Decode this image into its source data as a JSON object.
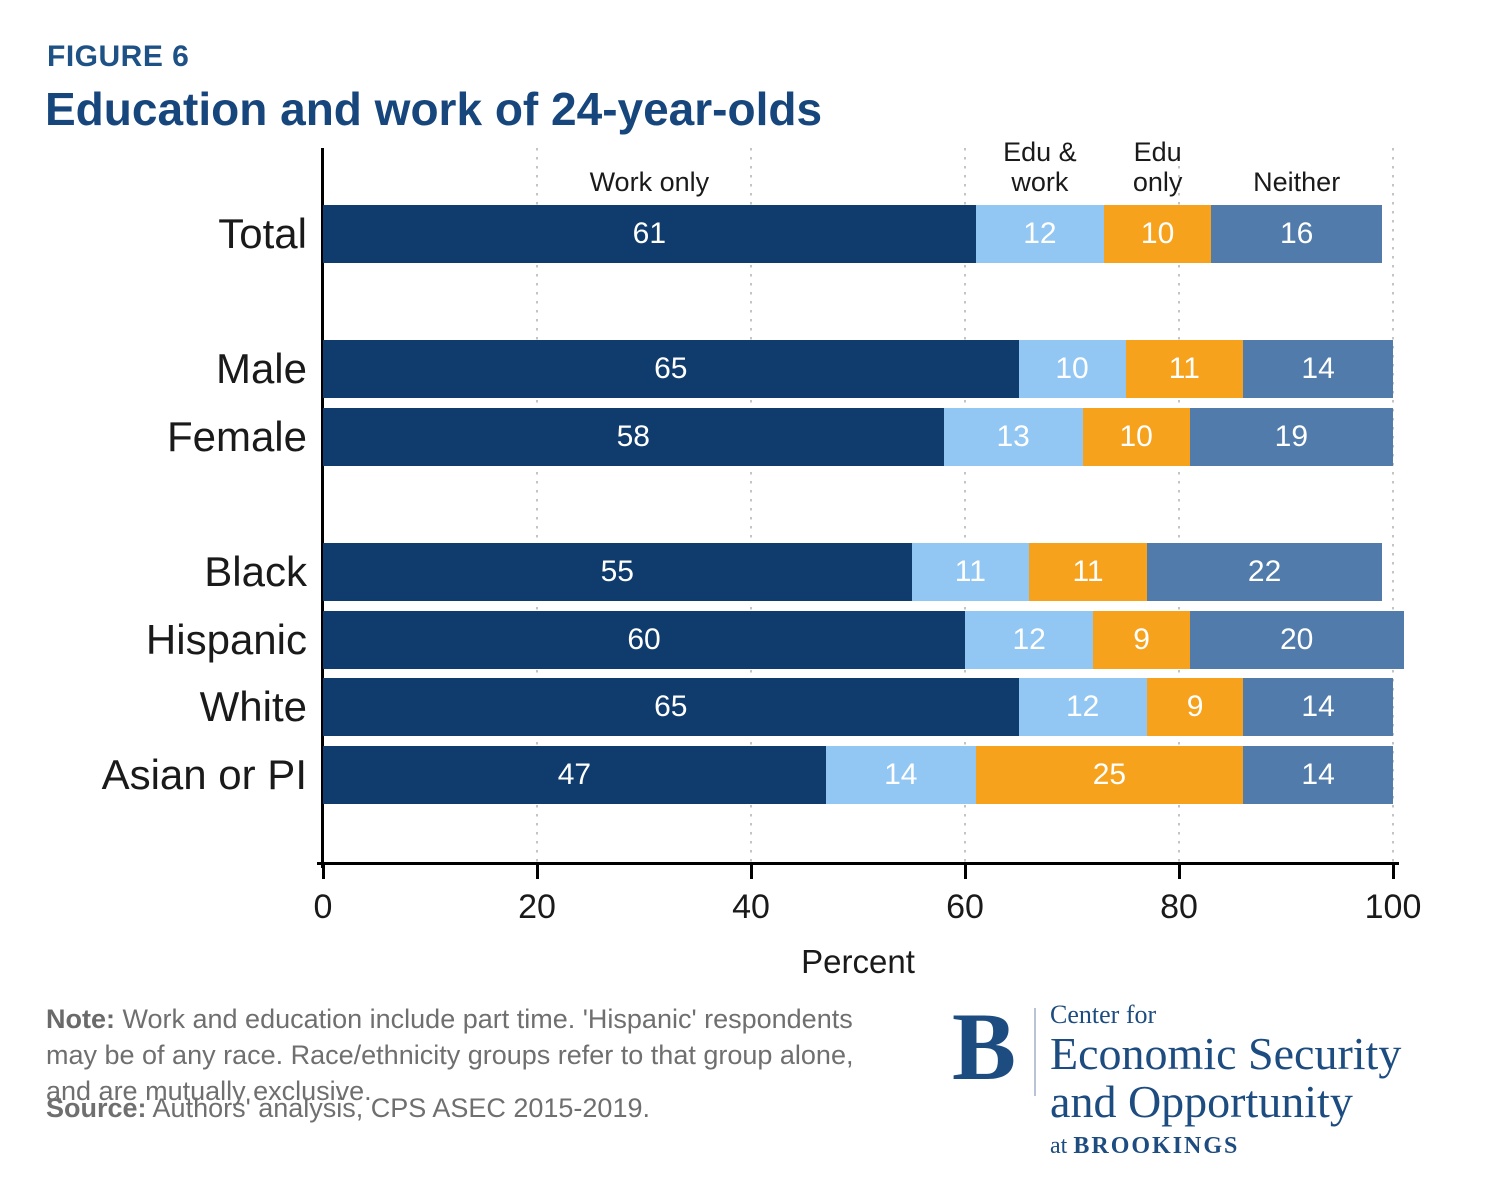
{
  "figure_label": "FIGURE 6",
  "title": "Education and work of 24-year-olds",
  "chart_data": {
    "type": "bar",
    "stacked": true,
    "orientation": "horizontal",
    "title": "Education and work of 24-year-olds",
    "xlabel": "Percent",
    "xlim": [
      0,
      100
    ],
    "xticks": [
      0,
      20,
      40,
      60,
      80,
      100
    ],
    "grid": "vertical-dotted",
    "legend_position": "above-first-bar-segments",
    "series_names": [
      "Work only",
      "Edu & work",
      "Edu only",
      "Neither"
    ],
    "series_colors": [
      "#103c6d",
      "#92c7f4",
      "#f7a21c",
      "#507bab"
    ],
    "groups": [
      {
        "rows": [
          {
            "label": "Total",
            "values": [
              61,
              12,
              10,
              16
            ]
          }
        ]
      },
      {
        "rows": [
          {
            "label": "Male",
            "values": [
              65,
              10,
              11,
              14
            ]
          },
          {
            "label": "Female",
            "values": [
              58,
              13,
              10,
              19
            ]
          }
        ]
      },
      {
        "rows": [
          {
            "label": "Black",
            "values": [
              55,
              11,
              11,
              22
            ]
          },
          {
            "label": "Hispanic",
            "values": [
              60,
              12,
              9,
              20
            ]
          },
          {
            "label": "White",
            "values": [
              65,
              12,
              9,
              14
            ]
          },
          {
            "label": "Asian or PI",
            "values": [
              47,
              14,
              25,
              14
            ]
          }
        ]
      }
    ]
  },
  "note": {
    "label": "Note:",
    "text": " Work and education include part time. 'Hispanic' respondents may be of any race. Race/ethnicity groups refer to that group alone, and are mutually exclusive."
  },
  "source": {
    "label": "Source:",
    "text": " Authors' analysis, CPS ASEC 2015-2019."
  },
  "logo": {
    "letter": "B",
    "line1": "Center for",
    "line2": "Economic Security",
    "line3": "and Opportunity",
    "tagline_prefix": "at ",
    "tagline_name": "BROOKINGS"
  },
  "colors": {
    "figure_label": "#1e5186",
    "title": "#17467c",
    "axis": "#000000",
    "gridline": "#c4c4c4",
    "note_text": "#6f6f6f",
    "logo_navy": "#1d4c80"
  }
}
